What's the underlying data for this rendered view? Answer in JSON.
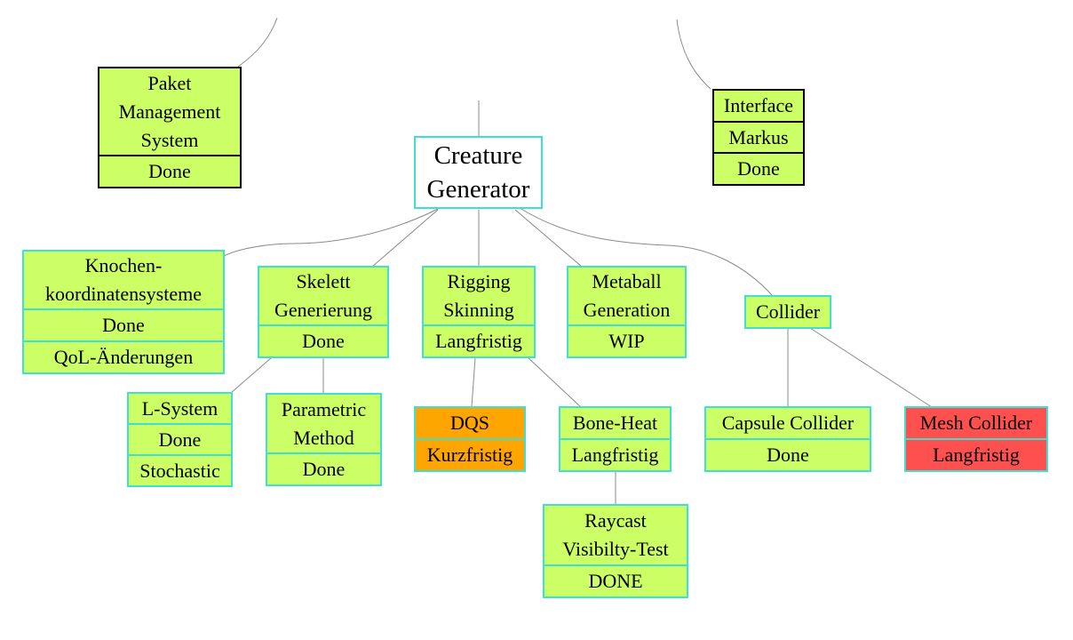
{
  "colors": {
    "node_fill": "#ccff66",
    "node_border": "#40e0d0",
    "root_fill": "#ffffff",
    "short_term_fill": "#ffa500",
    "blocked_fill": "#ff5050",
    "external_border": "#000000",
    "edge": "#8a8a8a"
  },
  "nodes": {
    "paket": {
      "lines": [
        "Paket\nManagement\nSystem",
        "Done"
      ]
    },
    "interface": {
      "lines": [
        "Interface",
        "Markus",
        "Done"
      ]
    },
    "root": {
      "lines": [
        "Creature\nGenerator"
      ]
    },
    "knochen": {
      "lines": [
        "Knochen-\nkoordinatensysteme",
        "Done",
        "QoL-Änderungen"
      ]
    },
    "skelett": {
      "lines": [
        "Skelett\nGenerierung",
        "Done"
      ]
    },
    "rigging": {
      "lines": [
        "Rigging\nSkinning",
        "Langfristig"
      ]
    },
    "metaball": {
      "lines": [
        "Metaball\nGeneration",
        "WIP"
      ]
    },
    "collider": {
      "lines": [
        "Collider"
      ]
    },
    "lsystem": {
      "lines": [
        "L-System",
        "Done",
        "Stochastic"
      ]
    },
    "parametric": {
      "lines": [
        "Parametric\nMethod",
        "Done"
      ]
    },
    "dqs": {
      "lines": [
        "DQS",
        "Kurzfristig"
      ]
    },
    "boneheat": {
      "lines": [
        "Bone-Heat",
        "Langfristig"
      ]
    },
    "capsule": {
      "lines": [
        "Capsule Collider",
        "Done"
      ]
    },
    "mesh": {
      "lines": [
        "Mesh Collider",
        "Langfristig"
      ]
    },
    "raycast": {
      "lines": [
        "Raycast\nVisibilty-Test",
        "DONE"
      ]
    }
  }
}
